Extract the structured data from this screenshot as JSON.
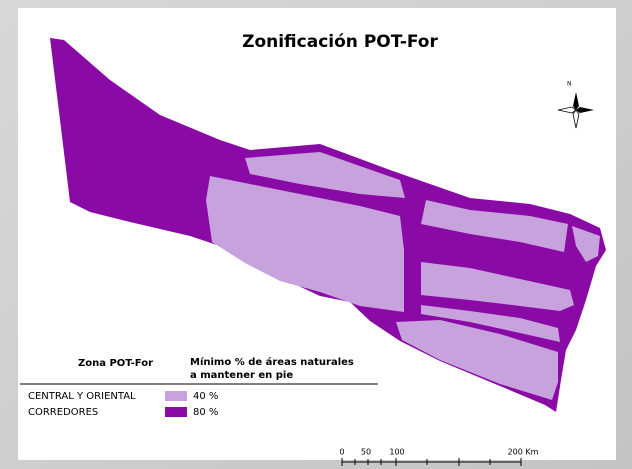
{
  "title": "Zonificación POT-For",
  "north": "N",
  "legend": {
    "zone_header": "Zona POT-For",
    "value_header": [
      "Mínimo % de áreas naturales",
      "a mantener en pie"
    ],
    "items": [
      {
        "zone": "CENTRAL Y ORIENTAL",
        "value": "40 %",
        "color": "#c7a2dc"
      },
      {
        "zone": "CORREDORES",
        "value": "80 %",
        "color": "#8a0aa6"
      }
    ]
  },
  "scale_labels": [
    "0",
    "50",
    "100",
    "200 Km"
  ]
}
